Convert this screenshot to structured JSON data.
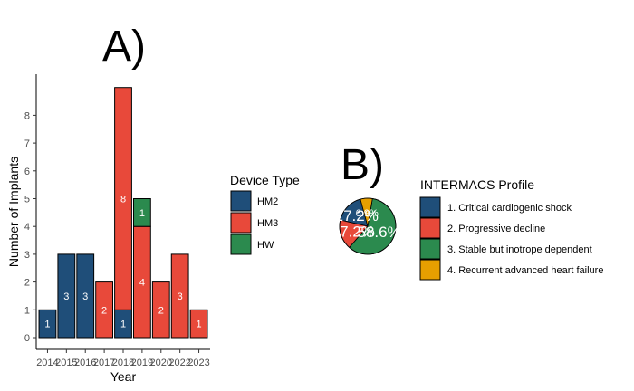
{
  "colors": {
    "HM2": "#1f4e79",
    "HM3": "#e8493a",
    "HW": "#2b8a4e",
    "profile1": "#1f4e79",
    "profile2": "#e8493a",
    "profile3": "#2b8a4e",
    "profile4": "#e69f00"
  },
  "chart_data": [
    {
      "type": "bar",
      "stacked": true,
      "title": "A)",
      "xlabel": "Year",
      "ylabel": "Number of Implants",
      "ylim": [
        0,
        9
      ],
      "yticks": [
        "0",
        "1",
        "2",
        "3",
        "4",
        "5",
        "6",
        "7",
        "8"
      ],
      "categories": [
        "2014",
        "2015",
        "2016",
        "2017",
        "2018",
        "2019",
        "2020",
        "2022",
        "2023"
      ],
      "series": [
        {
          "name": "HM2",
          "values": [
            1,
            3,
            3,
            0,
            1,
            0,
            0,
            0,
            0
          ]
        },
        {
          "name": "HM3",
          "values": [
            0,
            0,
            0,
            2,
            8,
            4,
            2,
            3,
            1
          ]
        },
        {
          "name": "HW",
          "values": [
            0,
            0,
            0,
            0,
            0,
            1,
            0,
            0,
            0
          ]
        }
      ],
      "legend": {
        "title": "Device Type",
        "position": "right",
        "entries": [
          "HM2",
          "HM3",
          "HW"
        ]
      },
      "grid": false
    },
    {
      "type": "pie",
      "title": "B)",
      "slices": [
        {
          "label": "1. Critical cardiogenic shock",
          "value": 17.2,
          "text": "17.2%"
        },
        {
          "label": "2. Progressive decline",
          "value": 17.2,
          "text": "17.2%"
        },
        {
          "label": "3. Stable but inotrope dependent",
          "value": 58.6,
          "text": "58.6%"
        },
        {
          "label": "4. Recurrent advanced heart failure",
          "value": 6.9,
          "text": "6.9%"
        }
      ],
      "legend": {
        "title": "INTERMACS Profile",
        "position": "right",
        "entries": [
          "1. Critical cardiogenic shock",
          "2. Progressive decline",
          "3. Stable but inotrope dependent",
          "4. Recurrent advanced heart failure"
        ]
      }
    }
  ]
}
